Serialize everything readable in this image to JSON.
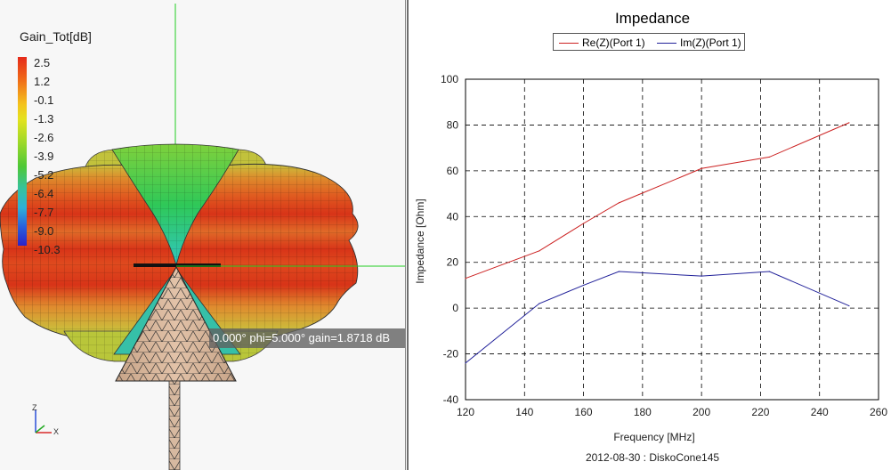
{
  "view3d": {
    "scale_title": "Gain_Tot[dB]",
    "scale_labels": [
      "2.5",
      "1.2",
      "-0.1",
      "-1.3",
      "-2.6",
      "-3.9",
      "-5.2",
      "-6.4",
      "-7.7",
      "-9.0",
      "-10.3"
    ],
    "readout": "0.000° phi=5.000° gain=1.8718 dB",
    "axis_labels": {
      "z": "Z",
      "x": "X"
    },
    "colors": {
      "red": "#d83418",
      "orange": "#e07a2a",
      "yellow": "#c8c23a",
      "green": "#3cc43a",
      "cone": "#d9b59a",
      "crosshair": "#22cc22"
    }
  },
  "chart": {
    "title": "Impedance",
    "xlabel": "Frequency [MHz]",
    "ylabel": "Impedance [Ohm]",
    "footer": "2012-08-30 : DiskoCone145",
    "x_ticks": [
      "120",
      "140",
      "160",
      "180",
      "200",
      "220",
      "240",
      "260"
    ],
    "y_ticks": [
      "100",
      "80",
      "60",
      "40",
      "20",
      "0",
      "-20",
      "-40"
    ]
  },
  "chart_data": {
    "type": "line",
    "title": "Impedance",
    "xlabel": "Frequency [MHz]",
    "ylabel": "Impedance [Ohm]",
    "xlim": [
      120,
      260
    ],
    "ylim": [
      -40,
      100
    ],
    "grid": true,
    "legend_position": "top-center",
    "series": [
      {
        "name": "Re(Z)(Port 1)",
        "color": "#cc2222",
        "x": [
          120,
          145,
          160,
          172,
          200,
          223,
          250
        ],
        "y": [
          13,
          25,
          37,
          46,
          61,
          66,
          81
        ]
      },
      {
        "name": "Im(Z)(Port 1)",
        "color": "#22229a",
        "x": [
          120,
          145,
          160,
          172,
          200,
          223,
          250
        ],
        "y": [
          -24,
          2,
          10,
          16,
          14,
          16,
          1
        ]
      }
    ]
  }
}
